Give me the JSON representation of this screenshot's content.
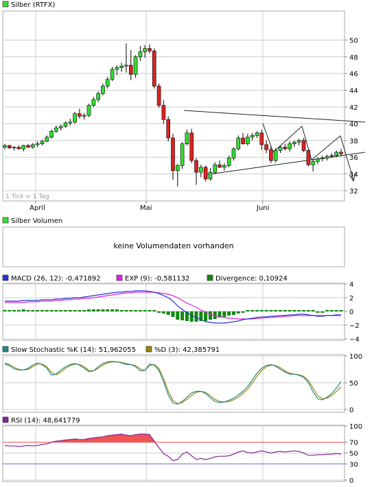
{
  "colors": {
    "up": "#33dd33",
    "down": "#dd2222",
    "macd": "#2233cc",
    "exp": "#dd22dd",
    "divergence": "#118811",
    "stoch_k": "#228888",
    "stoch_d": "#998800",
    "rsi": "#882299",
    "rsi_fill": "#ee5555",
    "rsi_70": "#ee4444",
    "rsi_30": "#6666ee",
    "grid": "#cccccc",
    "border": "#aaaaaa",
    "trend": "#222222"
  },
  "price": {
    "legend": "Silber (RTFX)",
    "tick_note": "1 Tick = 1 Tag",
    "x_labels": [
      "April",
      "Mai",
      "Juni"
    ],
    "y_ticks": [
      "32",
      "34",
      "36",
      "38",
      "40",
      "42",
      "44",
      "46",
      "48",
      "50"
    ]
  },
  "volume": {
    "legend": "Silber Volumen",
    "message": "keine Volumendaten vorhanden"
  },
  "macd": {
    "legend_macd": "MACD (26, 12): -0,471892",
    "legend_exp": "EXP (9): -0,581132",
    "legend_div": "Divergence: 0,10924",
    "y_ticks": [
      "4",
      "2",
      "0",
      "−2",
      "−4"
    ]
  },
  "stoch": {
    "legend_k": "Slow Stochastic %K (14): 51,962055",
    "legend_d": "%D (3): 42,385791",
    "y_ticks": [
      "100",
      "50",
      "0"
    ]
  },
  "rsi": {
    "legend": "RSI (14): 48,641779",
    "y_ticks": [
      "100",
      "70",
      "50",
      "30",
      "0"
    ]
  },
  "chart_data": [
    {
      "type": "candlestick",
      "title": "Silber (RTFX)",
      "ylim": [
        31,
        52
      ],
      "x_categories": [
        "April",
        "Mai",
        "Juni"
      ],
      "candles": [
        [
          37.2,
          37.6,
          36.9,
          37.4
        ],
        [
          37.4,
          37.5,
          37.0,
          37.1
        ],
        [
          37.1,
          37.3,
          36.8,
          37.2
        ],
        [
          37.2,
          37.4,
          36.9,
          37.0
        ],
        [
          37.0,
          37.5,
          36.7,
          37.4
        ],
        [
          37.4,
          37.6,
          37.1,
          37.2
        ],
        [
          37.2,
          37.7,
          37.0,
          37.5
        ],
        [
          37.5,
          37.9,
          37.2,
          37.6
        ],
        [
          37.6,
          38.1,
          37.4,
          37.9
        ],
        [
          37.9,
          38.6,
          37.8,
          38.4
        ],
        [
          38.4,
          39.3,
          38.2,
          39.1
        ],
        [
          39.1,
          39.8,
          38.9,
          39.5
        ],
        [
          39.5,
          39.9,
          39.2,
          39.7
        ],
        [
          39.7,
          40.3,
          39.5,
          40.1
        ],
        [
          40.1,
          40.6,
          39.8,
          40.2
        ],
        [
          40.2,
          41.4,
          40.0,
          41.2
        ],
        [
          41.2,
          41.8,
          40.6,
          40.9
        ],
        [
          40.9,
          41.3,
          40.5,
          41.0
        ],
        [
          41.0,
          42.4,
          40.8,
          42.2
        ],
        [
          42.2,
          43.2,
          42.0,
          42.9
        ],
        [
          42.9,
          43.9,
          42.6,
          43.6
        ],
        [
          43.6,
          44.8,
          43.4,
          44.5
        ],
        [
          44.5,
          45.6,
          44.2,
          45.3
        ],
        [
          45.3,
          46.8,
          45.1,
          46.5
        ],
        [
          46.5,
          47.0,
          45.8,
          46.7
        ],
        [
          46.7,
          47.3,
          46.2,
          46.9
        ],
        [
          46.9,
          49.6,
          46.1,
          47.0
        ],
        [
          47.0,
          48.8,
          45.2,
          45.9
        ],
        [
          45.9,
          48.2,
          45.5,
          48.0
        ],
        [
          48.0,
          49.3,
          47.5,
          48.6
        ],
        [
          48.6,
          49.4,
          47.9,
          49.0
        ],
        [
          49.0,
          49.5,
          48.4,
          48.7
        ],
        [
          48.7,
          49.0,
          44.2,
          44.5
        ],
        [
          44.5,
          44.8,
          41.9,
          42.2
        ],
        [
          42.2,
          42.8,
          40.0,
          40.5
        ],
        [
          40.5,
          40.9,
          37.9,
          38.3
        ],
        [
          38.3,
          38.8,
          33.3,
          34.4
        ],
        [
          34.4,
          35.2,
          32.5,
          35.0
        ],
        [
          35.0,
          37.8,
          34.6,
          37.6
        ],
        [
          37.6,
          39.3,
          37.4,
          38.9
        ],
        [
          38.9,
          39.4,
          35.3,
          35.6
        ],
        [
          35.6,
          35.9,
          32.7,
          34.2
        ],
        [
          34.2,
          35.1,
          33.6,
          34.8
        ],
        [
          34.8,
          35.0,
          33.1,
          33.4
        ],
        [
          33.4,
          34.7,
          33.2,
          34.2
        ],
        [
          34.2,
          35.4,
          34.0,
          35.1
        ],
        [
          35.1,
          35.6,
          34.7,
          34.8
        ],
        [
          34.8,
          35.3,
          34.4,
          35.0
        ],
        [
          35.0,
          36.2,
          34.8,
          35.9
        ],
        [
          35.9,
          37.2,
          35.6,
          37.0
        ],
        [
          37.0,
          38.6,
          36.8,
          38.3
        ],
        [
          38.3,
          38.9,
          37.5,
          37.6
        ],
        [
          37.6,
          38.8,
          37.4,
          38.4
        ],
        [
          38.4,
          38.9,
          38.0,
          38.6
        ],
        [
          38.6,
          39.1,
          38.3,
          38.9
        ],
        [
          38.9,
          39.3,
          36.9,
          37.5
        ],
        [
          37.5,
          38.0,
          36.5,
          36.9
        ],
        [
          36.9,
          37.3,
          35.3,
          35.6
        ],
        [
          35.6,
          37.1,
          35.4,
          36.8
        ],
        [
          36.8,
          37.4,
          36.5,
          37.2
        ],
        [
          37.2,
          37.6,
          36.8,
          37.0
        ],
        [
          37.0,
          37.9,
          36.7,
          37.6
        ],
        [
          37.6,
          38.0,
          37.2,
          37.8
        ],
        [
          37.8,
          38.2,
          37.4,
          38.0
        ],
        [
          38.0,
          38.3,
          36.6,
          36.8
        ],
        [
          36.8,
          37.0,
          34.9,
          35.1
        ],
        [
          35.1,
          35.7,
          34.3,
          35.5
        ],
        [
          35.5,
          36.0,
          35.2,
          35.8
        ],
        [
          35.8,
          36.2,
          35.5,
          35.9
        ],
        [
          35.9,
          36.3,
          35.6,
          36.1
        ],
        [
          36.1,
          36.5,
          35.9,
          36.2
        ],
        [
          36.2,
          36.8,
          36.0,
          36.6
        ],
        [
          36.6,
          37.0,
          36.1,
          36.4
        ]
      ]
    },
    {
      "type": "bar",
      "title": "Silber Volumen",
      "series": []
    },
    {
      "type": "line",
      "title": "MACD",
      "ylim": [
        -4.5,
        4.5
      ],
      "series": [
        {
          "name": "MACD (26, 12)",
          "values": [
            1.5,
            1.5,
            1.5,
            1.5,
            1.6,
            1.6,
            1.6,
            1.6,
            1.7,
            1.7,
            1.7,
            1.8,
            1.8,
            1.9,
            1.9,
            2.0,
            2.0,
            2.1,
            2.2,
            2.3,
            2.4,
            2.5,
            2.6,
            2.7,
            2.8,
            2.8,
            2.9,
            2.9,
            3.0,
            3.0,
            3.0,
            2.9,
            2.8,
            2.6,
            2.3,
            2.0,
            1.5,
            0.8,
            0.3,
            -0.2,
            -0.6,
            -0.9,
            -1.2,
            -1.5,
            -1.6,
            -1.7,
            -1.7,
            -1.7,
            -1.6,
            -1.5,
            -1.4,
            -1.2,
            -1.1,
            -1.0,
            -0.9,
            -0.8,
            -0.8,
            -0.7,
            -0.7,
            -0.6,
            -0.6,
            -0.5,
            -0.5,
            -0.4,
            -0.4,
            -0.5,
            -0.6,
            -0.7,
            -0.7,
            -0.6,
            -0.6,
            -0.5,
            -0.5
          ]
        },
        {
          "name": "EXP (9)",
          "values": [
            1.3,
            1.3,
            1.3,
            1.3,
            1.3,
            1.4,
            1.4,
            1.4,
            1.5,
            1.5,
            1.5,
            1.6,
            1.6,
            1.7,
            1.7,
            1.8,
            1.8,
            1.9,
            1.9,
            2.0,
            2.1,
            2.2,
            2.3,
            2.4,
            2.5,
            2.6,
            2.7,
            2.7,
            2.8,
            2.8,
            2.8,
            2.8,
            2.8,
            2.7,
            2.6,
            2.5,
            2.3,
            2.0,
            1.6,
            1.2,
            0.9,
            0.6,
            0.2,
            -0.1,
            -0.4,
            -0.6,
            -0.8,
            -0.9,
            -1.0,
            -1.0,
            -1.1,
            -1.1,
            -1.1,
            -1.1,
            -1.0,
            -1.0,
            -0.9,
            -0.9,
            -0.8,
            -0.8,
            -0.7,
            -0.7,
            -0.6,
            -0.6,
            -0.6,
            -0.6,
            -0.6,
            -0.6,
            -0.6,
            -0.6,
            -0.6,
            -0.6,
            -0.6
          ]
        },
        {
          "name": "Divergence",
          "values": [
            0.2,
            0.2,
            0.2,
            0.2,
            0.3,
            0.2,
            0.2,
            0.2,
            0.2,
            0.2,
            0.2,
            0.2,
            0.2,
            0.2,
            0.2,
            0.2,
            0.2,
            0.2,
            0.3,
            0.3,
            0.3,
            0.3,
            0.3,
            0.3,
            0.3,
            0.2,
            0.2,
            0.2,
            0.2,
            0.2,
            0.2,
            0.1,
            0.0,
            -0.1,
            -0.3,
            -0.5,
            -0.8,
            -1.2,
            -1.3,
            -1.4,
            -1.5,
            -1.5,
            -1.4,
            -1.4,
            -1.2,
            -1.1,
            -0.9,
            -0.8,
            -0.6,
            -0.5,
            -0.3,
            -0.1,
            0.0,
            0.1,
            0.1,
            0.2,
            0.1,
            0.2,
            0.1,
            0.2,
            0.1,
            0.2,
            0.1,
            0.2,
            0.2,
            0.1,
            0.0,
            -0.1,
            -0.1,
            0.0,
            0.0,
            0.1,
            0.1
          ]
        }
      ]
    },
    {
      "type": "line",
      "title": "Slow Stochastic",
      "ylim": [
        0,
        100
      ],
      "series": [
        {
          "name": "Slow Stochastic %K (14)",
          "values": [
            85,
            82,
            76,
            74,
            74,
            77,
            83,
            87,
            84,
            77,
            64,
            66,
            74,
            80,
            84,
            86,
            83,
            77,
            71,
            72,
            80,
            86,
            89,
            90,
            89,
            87,
            84,
            84,
            80,
            72,
            73,
            85,
            83,
            73,
            52,
            27,
            12,
            10,
            15,
            23,
            31,
            34,
            34,
            30,
            22,
            15,
            13,
            14,
            17,
            21,
            27,
            34,
            43,
            55,
            68,
            77,
            82,
            84,
            81,
            75,
            70,
            66,
            66,
            64,
            60,
            50,
            33,
            20,
            18,
            23,
            30,
            40,
            52
          ]
        },
        {
          "name": "%D (3)",
          "values": [
            87,
            84,
            79,
            75,
            74,
            75,
            80,
            85,
            85,
            80,
            69,
            65,
            70,
            77,
            82,
            85,
            84,
            80,
            73,
            72,
            77,
            83,
            87,
            89,
            89,
            88,
            86,
            84,
            82,
            76,
            73,
            82,
            84,
            77,
            58,
            34,
            17,
            11,
            13,
            19,
            26,
            32,
            34,
            32,
            26,
            19,
            15,
            14,
            15,
            18,
            23,
            30,
            38,
            49,
            62,
            73,
            80,
            83,
            82,
            78,
            72,
            68,
            66,
            65,
            62,
            54,
            40,
            26,
            20,
            21,
            26,
            34,
            42
          ]
        }
      ]
    },
    {
      "type": "area",
      "title": "RSI",
      "ylim": [
        0,
        100
      ],
      "series": [
        {
          "name": "RSI (14)",
          "values": [
            64,
            63,
            63,
            62,
            63,
            64,
            63,
            64,
            66,
            67,
            70,
            72,
            73,
            74,
            75,
            76,
            75,
            75,
            77,
            78,
            79,
            80,
            82,
            83,
            84,
            85,
            83,
            82,
            84,
            85,
            85,
            84,
            72,
            60,
            49,
            44,
            36,
            38,
            48,
            52,
            45,
            38,
            40,
            38,
            40,
            43,
            44,
            44,
            45,
            48,
            52,
            54,
            51,
            50,
            52,
            54,
            52,
            50,
            52,
            53,
            52,
            53,
            54,
            53,
            50,
            46,
            46,
            47,
            47,
            48,
            48,
            49,
            48
          ]
        }
      ],
      "levels": [
        70,
        30
      ]
    }
  ]
}
